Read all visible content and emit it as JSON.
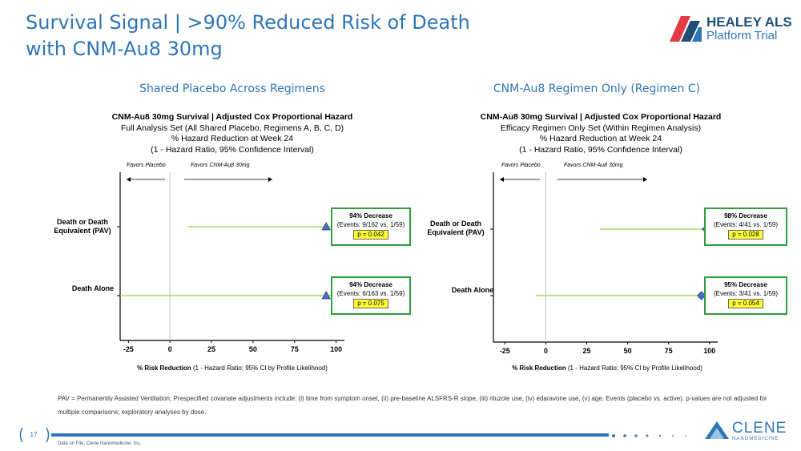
{
  "slide": {
    "title_line1": "Survival Signal | >90% Reduced Risk of Death",
    "title_line2": "with CNM-Au8 30mg",
    "page_number": "17",
    "footnote": "PAV = Permanently Assisted Ventilation; Prespecified covariate adjustments include: (i) time from symptom onset, (ii) pre-baseline ALSFRS-R slope, (iii) riluzole use, (iv) edaravone use, (v) age. Events (placebo vs. active). p-values are not adjusted for multiple comparisons; exploratory analyses by dose.",
    "source": "Data on File, Clene Nanomedicine, Inc.",
    "colors": {
      "title": "#2e75b6",
      "ci_line": "#92d050",
      "marker": "#4472c4",
      "box_border": "#2e9e3e",
      "p_highlight": "#ffff33"
    }
  },
  "logo_healey": {
    "line1": "HEALEY ALS",
    "line2": "Platform Trial"
  },
  "logo_clene": {
    "line1": "CLENE",
    "line2": "NANOMEDICINE"
  },
  "chart_data": [
    {
      "type": "forest",
      "panel_title": "Shared Placebo Across Regimens",
      "title": "CNM-Au8 30mg Survival | Adjusted Cox Proportional Hazard",
      "subtitle_lines": [
        "Full Analysis Set (All Shared Placebo, Regimens A, B, C, D)",
        "% Hazard Reduction at Week 24",
        "(1 - Hazard Ratio, 95% Confidence Interval)"
      ],
      "favors_left": "Favors Placebo",
      "favors_right": "Favors CNM-Au8 30mg",
      "xlabel_bold": "% Risk Reduction",
      "xlabel_rest": " (1 - Hazard Ratio; 95% CI by Profile Likelihood)",
      "xlim": [
        -30,
        105
      ],
      "xticks": [
        "-25",
        "0",
        "25",
        "50",
        "75",
        "100"
      ],
      "marker": "triangle",
      "rows": [
        {
          "label": "Death or Death Equivalent (PAV)",
          "estimate": 94,
          "ci_low": 11,
          "ci_high": 99,
          "decrease": "94% Decrease",
          "events": "(Events: 9/162 vs. 1/59)",
          "p": "p = 0.042"
        },
        {
          "label": "Death Alone",
          "estimate": 94,
          "ci_low": -32,
          "ci_high": 99,
          "decrease": "94% Decrease",
          "events": "(Events: 6/163 vs. 1/59)",
          "p": "p = 0.075"
        }
      ]
    },
    {
      "type": "forest",
      "panel_title": "CNM-Au8 Regimen Only (Regimen C)",
      "title": "CNM-Au8 30mg Survival | Adjusted Cox Proportional Hazard",
      "subtitle_lines": [
        "Efficacy Regimen Only Set (Within Regimen Analysis)",
        "% Hazard Reduction at Week 24",
        "(1 - Hazard Ratio, 95% Confidence Interval)"
      ],
      "favors_left": "Favors Placebo",
      "favors_right": "Favors CNM-Au8 30mg",
      "xlabel_bold": "% Risk Reduction",
      "xlabel_rest": " (1 - Hazard Ratio; 95% CI by Profile Likelihood)",
      "xlim": [
        -32,
        105
      ],
      "xticks": [
        "-25",
        "0",
        "25",
        "50",
        "75",
        "100"
      ],
      "marker": "diamond",
      "rows": [
        {
          "label": "Death or Death Equivalent (PAV)",
          "estimate": 98,
          "ci_low": 33,
          "ci_high": 100,
          "decrease": "98% Decrease",
          "events": "(Events: 4/41 vs. 1/59)",
          "p": "p = 0.028"
        },
        {
          "label": "Death Alone",
          "estimate": 95,
          "ci_low": -6,
          "ci_high": 100,
          "decrease": "95% Decrease",
          "events": "(Events: 3/41 vs. 1/59)",
          "p": "p = 0.054"
        }
      ]
    }
  ]
}
